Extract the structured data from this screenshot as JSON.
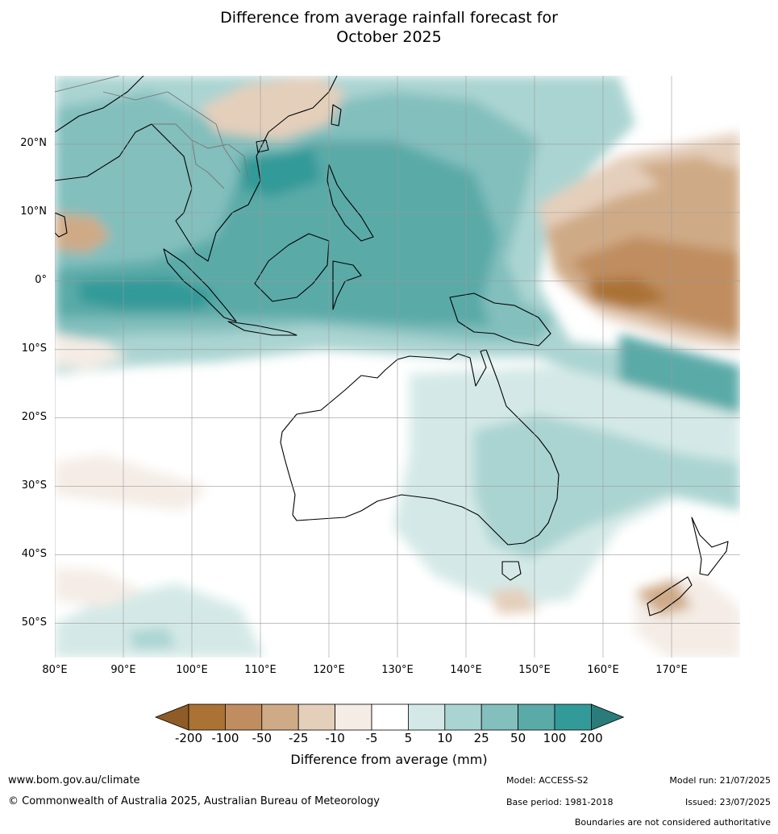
{
  "title": {
    "line1": "Difference from average rainfall forecast for",
    "line2": "October 2025"
  },
  "map": {
    "lon_range": [
      80,
      180
    ],
    "lat_range": [
      -55,
      30
    ],
    "lat_ticks": [
      {
        "value": 20,
        "label": "20°N"
      },
      {
        "value": 10,
        "label": "10°N"
      },
      {
        "value": 0,
        "label": "0°"
      },
      {
        "value": -10,
        "label": "10°S"
      },
      {
        "value": -20,
        "label": "20°S"
      },
      {
        "value": -30,
        "label": "30°S"
      },
      {
        "value": -40,
        "label": "40°S"
      },
      {
        "value": -50,
        "label": "50°S"
      }
    ],
    "lon_ticks": [
      {
        "value": 80,
        "label": "80°E"
      },
      {
        "value": 90,
        "label": "90°E"
      },
      {
        "value": 100,
        "label": "100°E"
      },
      {
        "value": 110,
        "label": "110°E"
      },
      {
        "value": 120,
        "label": "120°E"
      },
      {
        "value": 130,
        "label": "130°E"
      },
      {
        "value": 140,
        "label": "140°E"
      },
      {
        "value": 150,
        "label": "150°E"
      },
      {
        "value": 160,
        "label": "160°E"
      },
      {
        "value": 170,
        "label": "170°E"
      }
    ],
    "gridlines": true
  },
  "colorbar": {
    "ticks": [
      "-200",
      "-100",
      "-50",
      "-25",
      "-10",
      "-5",
      "5",
      "10",
      "25",
      "50",
      "100",
      "200"
    ],
    "colors": [
      "#ab7235",
      "#bf8d5f",
      "#cfaa86",
      "#e4cfbb",
      "#f4ece5",
      "#ffffff",
      "#d4e9e7",
      "#aad4d2",
      "#82bfbd",
      "#5aaaa8",
      "#329a98"
    ],
    "under_color": "#8f5c28",
    "over_color": "#2a7c7a",
    "label": "Difference from average (mm)"
  },
  "footer": {
    "website": "www.bom.gov.au/climate",
    "copyright": "© Commonwealth of Australia 2025, Australian Bureau of Meteorology",
    "model": "Model: ACCESS-S2",
    "base_period": "Base period: 1981-2018",
    "model_run": "Model run: 21/07/2025",
    "issued": "Issued: 23/07/2025",
    "disclaimer": "Boundaries are not considered authoritative"
  }
}
